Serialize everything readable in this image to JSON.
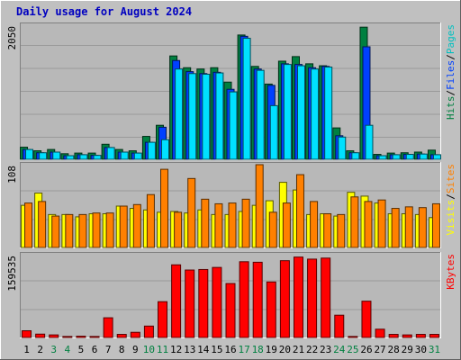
{
  "chart_data": {
    "type": "bar",
    "title": "Daily usage for August 2024",
    "categories": [
      "1",
      "2",
      "3",
      "4",
      "5",
      "6",
      "7",
      "8",
      "9",
      "10",
      "11",
      "12",
      "13",
      "14",
      "15",
      "16",
      "17",
      "18",
      "19",
      "20",
      "21",
      "22",
      "23",
      "24",
      "25",
      "26",
      "27",
      "28",
      "29",
      "30",
      "31"
    ],
    "weekend_days": [
      "3",
      "4",
      "10",
      "11",
      "17",
      "18",
      "24",
      "25",
      "31"
    ],
    "panels": [
      {
        "name": "hits_files_pages",
        "ymax_label": "2050",
        "ylim": [
          0,
          2050
        ],
        "series": [
          {
            "name": "Hits",
            "color": "#008040",
            "values": [
              185,
              130,
              150,
              85,
              95,
              95,
              230,
              150,
              130,
              350,
              520,
              1580,
              1400,
              1380,
              1400,
              1180,
              1900,
              1420,
              1150,
              1500,
              1570,
              1460,
              1430,
              480,
              130,
              2020,
              75,
              95,
              100,
              110,
              140
            ]
          },
          {
            "name": "Files",
            "color": "#0040ff",
            "values": [
              150,
              100,
              110,
              55,
              70,
              60,
              180,
              110,
              95,
              260,
              490,
              1510,
              1340,
              1310,
              1330,
              1070,
              1880,
              1380,
              1130,
              1460,
              1450,
              1400,
              1420,
              360,
              100,
              1720,
              55,
              70,
              75,
              80,
              70
            ]
          },
          {
            "name": "Pages",
            "color": "#00e0ff",
            "values": [
              150,
              100,
              110,
              55,
              70,
              60,
              180,
              110,
              95,
              260,
              300,
              1380,
              1310,
              1300,
              1320,
              1030,
              1850,
              1360,
              820,
              1450,
              1430,
              1380,
              1410,
              340,
              100,
              520,
              55,
              70,
              75,
              80,
              70
            ]
          }
        ],
        "side_labels": [
          {
            "text": "Pages",
            "color": "#00c0c0"
          },
          {
            "text": "Files",
            "color": "#0040ff"
          },
          {
            "text": "Hits",
            "color": "#008040"
          }
        ]
      },
      {
        "name": "visits_sites",
        "ymax_label": "108",
        "ylim": [
          0,
          108
        ],
        "series": [
          {
            "name": "Visits",
            "color": "#ffff00",
            "values": [
              55,
              71,
              43,
              43,
              40,
              44,
              44,
              54,
              51,
              49,
              46,
              47,
              45,
              49,
              43,
              43,
              47,
              55,
              61,
              85,
              75,
              43,
              44,
              41,
              72,
              67,
              58,
              44,
              44,
              43,
              39
            ]
          },
          {
            "name": "Sites",
            "color": "#ff8000",
            "values": [
              58,
              60,
              41,
              43,
              43,
              45,
              45,
              54,
              56,
              69,
              102,
              46,
              90,
              63,
              57,
              58,
              63,
              108,
              46,
              58,
              95,
              60,
              44,
              43,
              66,
              60,
              62,
              51,
              53,
              52,
              57
            ]
          }
        ],
        "side_labels": [
          {
            "text": "Sites",
            "color": "#ff8000"
          },
          {
            "text": "Visits",
            "color": "#ffff00"
          }
        ]
      },
      {
        "name": "kbytes",
        "ymax_label": "159535",
        "ylim": [
          0,
          159535
        ],
        "series": [
          {
            "name": "KBytes",
            "color": "#ff0000",
            "values": [
              13000,
              6500,
              5000,
              2000,
              2500,
              2000,
              38000,
              6000,
              10000,
              22000,
              69000,
              140000,
              130000,
              131000,
              135000,
              104000,
              146000,
              145000,
              107000,
              148000,
              155000,
              151000,
              153000,
              43000,
              2000,
              70000,
              16000,
              6000,
              5000,
              6000,
              6000
            ]
          }
        ],
        "side_labels": [
          {
            "text": "KBytes",
            "color": "#ff0000"
          }
        ]
      }
    ]
  },
  "colors": {
    "frame": "#c0c0c0",
    "plot_bg": "#b8b8b8",
    "weekday_label": "#000000",
    "weekend_label": "#008040"
  }
}
